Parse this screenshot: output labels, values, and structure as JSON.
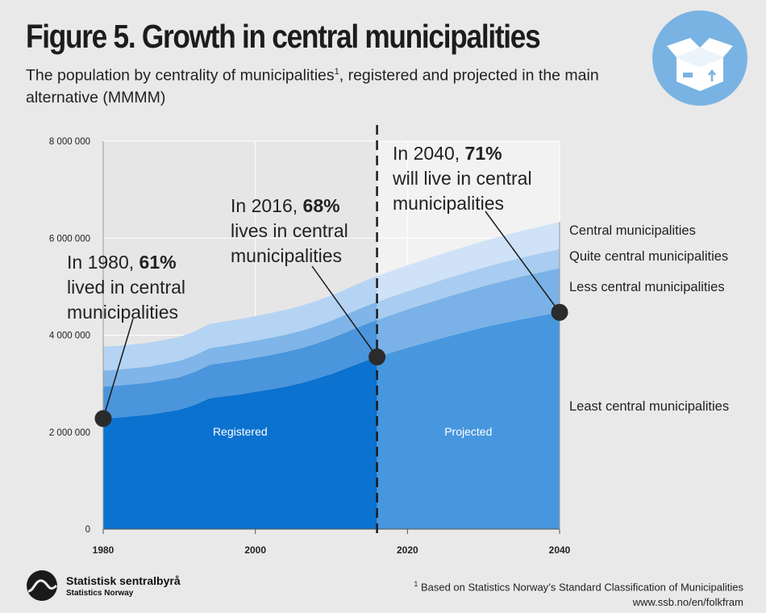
{
  "header": {
    "title": "Figure 5. Growth in central municipalities",
    "subtitle_part1": "The population by centrality of municipalities",
    "subtitle_sup": "1",
    "subtitle_part2": ", registered and projected in the main alternative (MMMM)"
  },
  "badge": {
    "icon": "box-icon"
  },
  "chart_data": {
    "type": "area",
    "stacked": true,
    "x": [
      1980,
      1982,
      1984,
      1986,
      1988,
      1990,
      1992,
      1994,
      1996,
      1998,
      2000,
      2002,
      2004,
      2006,
      2008,
      2010,
      2012,
      2014,
      2016,
      2020,
      2025,
      2030,
      2035,
      2040
    ],
    "series": [
      {
        "name": "Least central municipalities",
        "color_registered": "#0b72cf",
        "color_projected": "#4797de",
        "values": [
          2280000,
          2300000,
          2330000,
          2360000,
          2410000,
          2460000,
          2560000,
          2700000,
          2740000,
          2780000,
          2830000,
          2880000,
          2940000,
          3010000,
          3100000,
          3200000,
          3320000,
          3440000,
          3550000,
          3740000,
          3960000,
          4160000,
          4330000,
          4470000
        ]
      },
      {
        "name": "Less central municipalities",
        "color_registered": "#4a95dc",
        "color_projected": "#7ab2e7",
        "values": [
          660000,
          660000,
          660000,
          660000,
          665000,
          670000,
          680000,
          690000,
          695000,
          700000,
          705000,
          710000,
          715000,
          720000,
          725000,
          735000,
          745000,
          755000,
          765000,
          790000,
          820000,
          850000,
          880000,
          910000
        ]
      },
      {
        "name": "Quite central municipalities",
        "color_registered": "#7fb5e8",
        "color_projected": "#a9cdf0",
        "values": [
          330000,
          330000,
          330000,
          332000,
          335000,
          338000,
          340000,
          342000,
          345000,
          348000,
          350000,
          352000,
          355000,
          358000,
          360000,
          362000,
          365000,
          368000,
          370000,
          375000,
          380000,
          385000,
          390000,
          395000
        ]
      },
      {
        "name": "Central municipalities",
        "color_registered": "#b5d4f3",
        "color_projected": "#cfe2f7",
        "values": [
          490000,
          490000,
          490000,
          490000,
          492000,
          495000,
          497000,
          500000,
          502000,
          505000,
          508000,
          510000,
          512000,
          515000,
          518000,
          520000,
          525000,
          528000,
          530000,
          535000,
          540000,
          545000,
          550000,
          555000
        ]
      }
    ],
    "ylim": [
      0,
      8000000
    ],
    "yticks": [
      "0",
      "2 000 000",
      "4 000 000",
      "6 000 000",
      "8 000 000"
    ],
    "ytick_values": [
      0,
      2000000,
      4000000,
      6000000,
      8000000
    ],
    "xlim": [
      1980,
      2040
    ],
    "xticks": [
      1980,
      2000,
      2020,
      2040
    ],
    "xtick_labels": [
      "1980",
      "2000",
      "2020",
      "2040"
    ],
    "divider_year": 2016,
    "region_labels": {
      "registered": "Registered",
      "projected": "Projected"
    },
    "legend": [
      "Central municipalities",
      "Quite central municipalities",
      "Less central municipalities",
      "Least central municipalities"
    ],
    "annotations": [
      {
        "year": 1980,
        "value": 2280000,
        "line1_prefix": "In 1980, ",
        "line1_bold": "61%",
        "line2": "lived in central",
        "line3": "municipalities"
      },
      {
        "year": 2016,
        "value": 3550000,
        "line1_prefix": "In 2016, ",
        "line1_bold": "68%",
        "line2": "lives in central",
        "line3": "municipalities"
      },
      {
        "year": 2040,
        "value": 4470000,
        "line1_prefix": "In 2040, ",
        "line1_bold": "71%",
        "line2": "will live in central",
        "line3": "municipalities"
      }
    ],
    "colors": {
      "gridline": "#ffffff",
      "projected_bg": "#f2f2f2",
      "registered_bg": "#e6e6e6",
      "marker": "#2b2b2b"
    }
  },
  "footer": {
    "logo_name": "Statistisk sentralbyrå",
    "logo_sub": "Statistics Norway",
    "footnote_sup": "1",
    "footnote_text": " Based on Statistics Norway’s Standard Classification of Municipalities",
    "source_url": "www.ssb.no/en/folkfram"
  }
}
